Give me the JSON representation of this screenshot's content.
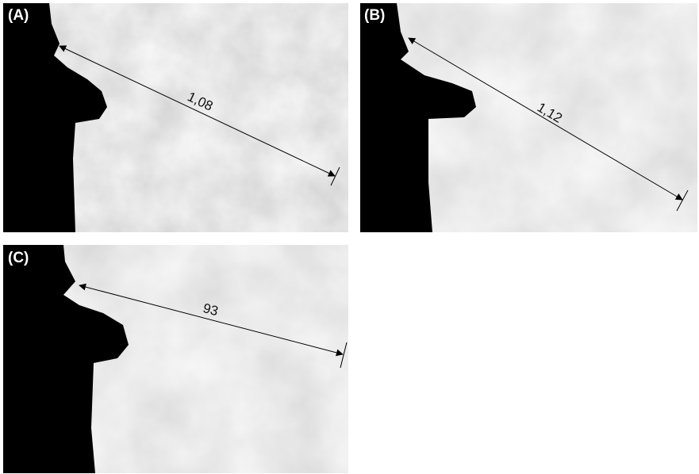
{
  "panels": [
    {
      "label": "(A)",
      "measurement": "1,08"
    },
    {
      "label": "(B)",
      "measurement": "1,12"
    },
    {
      "label": "(C)",
      "measurement": "93"
    }
  ]
}
